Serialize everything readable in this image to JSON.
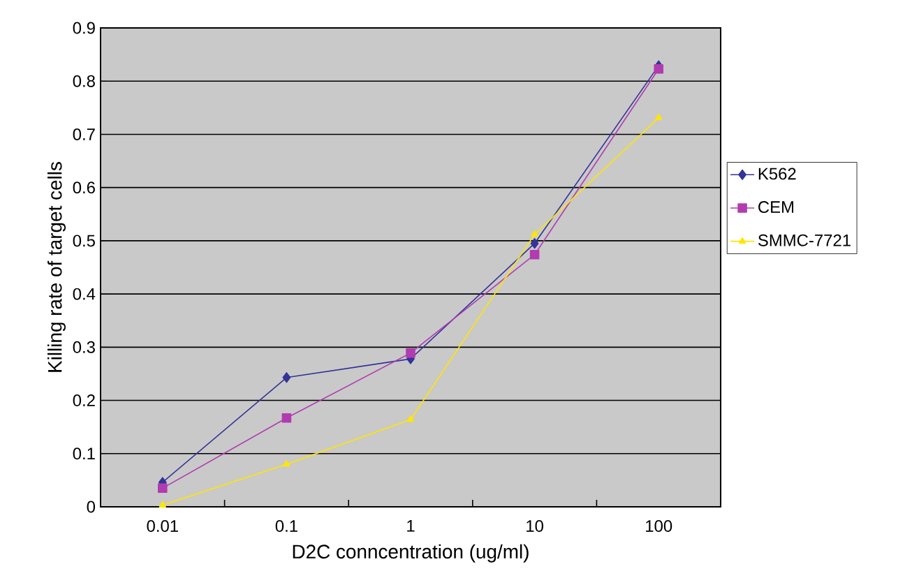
{
  "chart_data": {
    "type": "line",
    "xlabel": "D2C conncentration (ug/ml)",
    "ylabel": "Killing rate of target cells",
    "categories": [
      "0.01",
      "0.1",
      "1",
      "10",
      "100"
    ],
    "series": [
      {
        "name": "K562",
        "color": "#333399",
        "marker": "diamond",
        "values": [
          0.046,
          0.243,
          0.278,
          0.495,
          0.829
        ]
      },
      {
        "name": "CEM",
        "color": "#b03cb0",
        "marker": "square",
        "values": [
          0.035,
          0.167,
          0.289,
          0.474,
          0.823
        ]
      },
      {
        "name": "SMMC-7721",
        "color": "#ffe600",
        "marker": "triangle",
        "values": [
          0.003,
          0.08,
          0.164,
          0.512,
          0.731
        ]
      }
    ],
    "ylim": [
      0,
      0.9
    ],
    "yticks": [
      0,
      0.1,
      0.2,
      0.3,
      0.4,
      0.5,
      0.6,
      0.7,
      0.8,
      0.9
    ],
    "grid": "y",
    "legend": "right",
    "line_style": "solid"
  }
}
